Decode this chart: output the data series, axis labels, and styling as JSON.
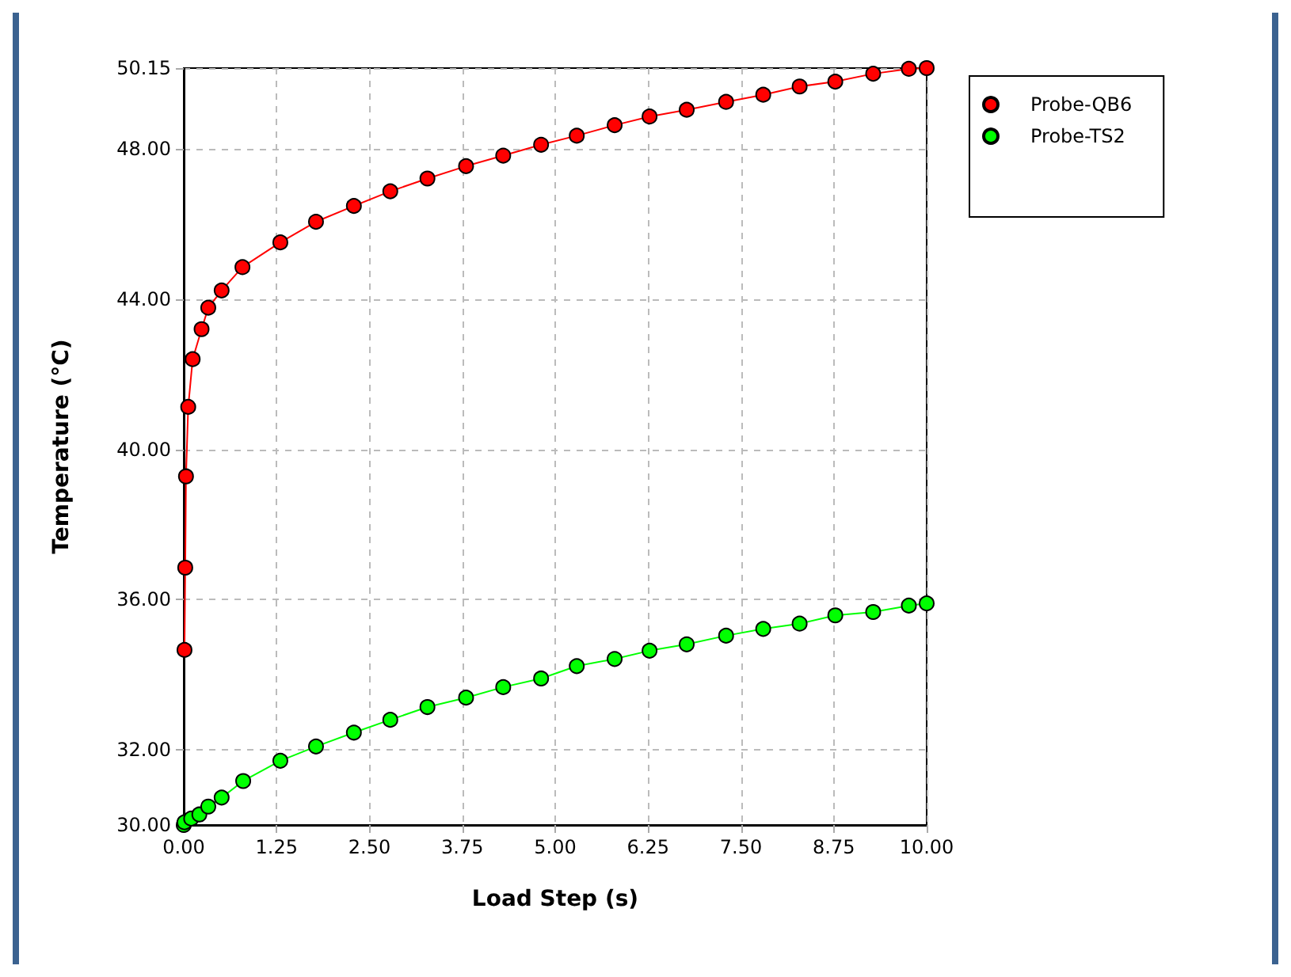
{
  "chart_data": {
    "type": "line",
    "xlabel": "Load Step (s)",
    "ylabel": "Temperature (°C)",
    "xlim": [
      0,
      10
    ],
    "ylim": [
      30,
      50.15
    ],
    "xticks": [
      {
        "value": 0,
        "label": "0.00"
      },
      {
        "value": 1.25,
        "label": "1.25"
      },
      {
        "value": 2.5,
        "label": "2.50"
      },
      {
        "value": 3.75,
        "label": "3.75"
      },
      {
        "value": 5,
        "label": "5.00"
      },
      {
        "value": 6.25,
        "label": "6.25"
      },
      {
        "value": 7.5,
        "label": "7.50"
      },
      {
        "value": 8.75,
        "label": "8.75"
      },
      {
        "value": 10,
        "label": "10.00"
      }
    ],
    "yticks": [
      {
        "value": 30,
        "label": "30.00"
      },
      {
        "value": 32,
        "label": "32.00"
      },
      {
        "value": 36,
        "label": "36.00"
      },
      {
        "value": 40,
        "label": "40.00"
      },
      {
        "value": 44,
        "label": "44.00"
      },
      {
        "value": 48,
        "label": "48.00"
      },
      {
        "value": 50.15,
        "label": "50.15"
      }
    ],
    "grid": true,
    "legend": "top right",
    "marker": "circle",
    "line_style": "solid",
    "series": [
      {
        "name": "Probe-QB6",
        "color": "#ff0000",
        "x": [
          0.01,
          0.02,
          0.03,
          0.06,
          0.12,
          0.24,
          0.33,
          0.51,
          0.79,
          1.3,
          1.78,
          2.29,
          2.78,
          3.28,
          3.8,
          4.3,
          4.81,
          5.29,
          5.8,
          6.27,
          6.77,
          7.3,
          7.8,
          8.29,
          8.77,
          9.28,
          9.76,
          10
        ],
        "values": [
          34.66,
          36.85,
          39.28,
          41.13,
          42.4,
          43.2,
          43.77,
          44.23,
          44.85,
          45.51,
          46.06,
          46.48,
          46.87,
          47.21,
          47.54,
          47.82,
          48.11,
          48.35,
          48.63,
          48.86,
          49.04,
          49.25,
          49.44,
          49.66,
          49.79,
          50,
          50.13,
          50.15
        ]
      },
      {
        "name": "Probe-TS2",
        "color": "#00ff00",
        "x": [
          0,
          0.01,
          0.1,
          0.21,
          0.33,
          0.51,
          0.8,
          1.3,
          1.78,
          2.29,
          2.78,
          3.28,
          3.8,
          4.3,
          4.81,
          5.29,
          5.8,
          6.27,
          6.77,
          7.3,
          7.8,
          8.29,
          8.77,
          9.28,
          9.76,
          10
        ],
        "values": [
          30,
          30.07,
          30.17,
          30.28,
          30.49,
          30.73,
          31.17,
          31.71,
          32.09,
          32.46,
          32.8,
          33.14,
          33.39,
          33.67,
          33.9,
          34.23,
          34.42,
          34.64,
          34.81,
          35.04,
          35.22,
          35.36,
          35.58,
          35.67,
          35.84,
          35.9
        ]
      }
    ]
  }
}
